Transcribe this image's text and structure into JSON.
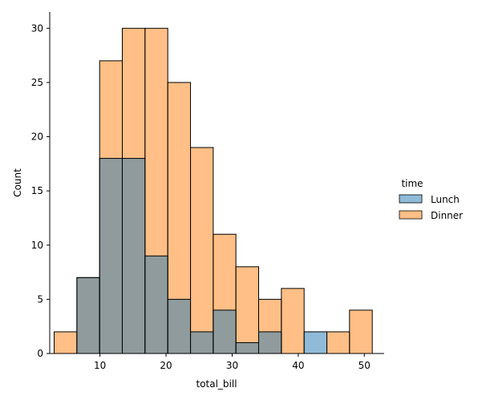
{
  "chart_data": {
    "type": "bar",
    "subtype": "overlapping-histogram",
    "title": "",
    "xlabel": "total_bill",
    "ylabel": "Count",
    "xlim": [
      2.4,
      53.0
    ],
    "ylim": [
      0,
      31.5
    ],
    "xticks": [
      10,
      20,
      30,
      40,
      50
    ],
    "yticks": [
      0,
      5,
      10,
      15,
      20,
      25,
      30
    ],
    "grid": false,
    "legend": {
      "title": "time",
      "placement": "right-outside"
    },
    "bin_edges": [
      3.07,
      6.51,
      9.95,
      13.38,
      16.82,
      20.26,
      23.7,
      27.14,
      30.57,
      34.01,
      37.45,
      40.89,
      44.33,
      47.76,
      51.2
    ],
    "series": [
      {
        "name": "Lunch",
        "color": "#1f77b4",
        "values": [
          0,
          7,
          18,
          18,
          9,
          5,
          2,
          4,
          1,
          2,
          0,
          2,
          0,
          0
        ]
      },
      {
        "name": "Dinner",
        "color": "#ff7f0e",
        "values": [
          2,
          7,
          27,
          30,
          30,
          25,
          19,
          11,
          8,
          5,
          6,
          0,
          2,
          4
        ]
      }
    ],
    "overlap_color": "#8c9aa0"
  }
}
